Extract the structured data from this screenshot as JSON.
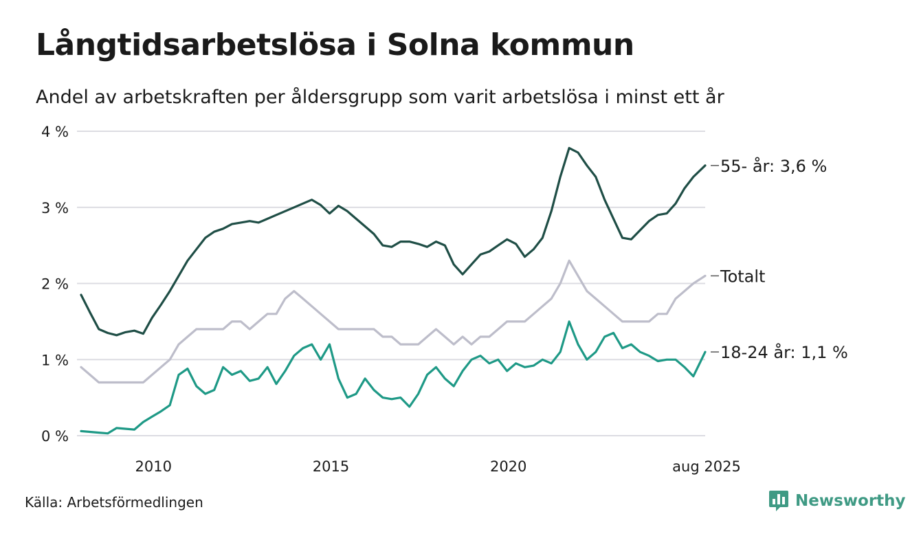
{
  "title": "Långtidsarbetslösa i Solna kommun",
  "subtitle": "Andel av arbetskraften per åldersgrupp som varit arbetslösa i minst ett år",
  "source": "Källa: Arbetsförmedlingen",
  "brand": {
    "name": "Newsworthy",
    "icon": "bar-chart-logo-icon",
    "color": "#3f9a84"
  },
  "chart_data": {
    "type": "line",
    "x_unit": "year",
    "xlim": [
      2008.0,
      2025.583
    ],
    "ylim": [
      0,
      4
    ],
    "y_ticks": [
      0,
      1,
      2,
      3,
      4
    ],
    "y_tick_labels": [
      "0 %",
      "1 %",
      "2 %",
      "3 %",
      "4 %"
    ],
    "x_ticks": [
      2010,
      2015,
      2020,
      2025.583
    ],
    "x_tick_labels": [
      "2010",
      "2015",
      "2020",
      "aug 2025"
    ],
    "grid": true,
    "legend": "end-of-line labels",
    "series": [
      {
        "name": "55- år",
        "end_label": "55- år: 3,6 %",
        "color": "#1f4e46",
        "points": [
          [
            2008.0,
            1.85
          ],
          [
            2008.25,
            1.62
          ],
          [
            2008.5,
            1.4
          ],
          [
            2008.75,
            1.35
          ],
          [
            2009.0,
            1.32
          ],
          [
            2009.25,
            1.36
          ],
          [
            2009.5,
            1.38
          ],
          [
            2009.75,
            1.34
          ],
          [
            2010.0,
            1.55
          ],
          [
            2010.25,
            1.72
          ],
          [
            2010.5,
            1.9
          ],
          [
            2010.75,
            2.1
          ],
          [
            2011.0,
            2.3
          ],
          [
            2011.25,
            2.45
          ],
          [
            2011.5,
            2.6
          ],
          [
            2011.75,
            2.68
          ],
          [
            2012.0,
            2.72
          ],
          [
            2012.25,
            2.78
          ],
          [
            2012.5,
            2.8
          ],
          [
            2012.75,
            2.82
          ],
          [
            2013.0,
            2.8
          ],
          [
            2013.25,
            2.85
          ],
          [
            2013.5,
            2.9
          ],
          [
            2013.75,
            2.95
          ],
          [
            2014.0,
            3.0
          ],
          [
            2014.25,
            3.05
          ],
          [
            2014.5,
            3.1
          ],
          [
            2014.75,
            3.03
          ],
          [
            2015.0,
            2.92
          ],
          [
            2015.25,
            3.02
          ],
          [
            2015.5,
            2.95
          ],
          [
            2015.75,
            2.85
          ],
          [
            2016.0,
            2.75
          ],
          [
            2016.25,
            2.65
          ],
          [
            2016.5,
            2.5
          ],
          [
            2016.75,
            2.48
          ],
          [
            2017.0,
            2.55
          ],
          [
            2017.25,
            2.55
          ],
          [
            2017.5,
            2.52
          ],
          [
            2017.75,
            2.48
          ],
          [
            2018.0,
            2.55
          ],
          [
            2018.25,
            2.5
          ],
          [
            2018.5,
            2.25
          ],
          [
            2018.75,
            2.12
          ],
          [
            2019.0,
            2.25
          ],
          [
            2019.25,
            2.38
          ],
          [
            2019.5,
            2.42
          ],
          [
            2019.75,
            2.5
          ],
          [
            2020.0,
            2.58
          ],
          [
            2020.25,
            2.52
          ],
          [
            2020.5,
            2.35
          ],
          [
            2020.75,
            2.45
          ],
          [
            2021.0,
            2.6
          ],
          [
            2021.25,
            2.95
          ],
          [
            2021.5,
            3.4
          ],
          [
            2021.75,
            3.78
          ],
          [
            2022.0,
            3.72
          ],
          [
            2022.25,
            3.55
          ],
          [
            2022.5,
            3.4
          ],
          [
            2022.75,
            3.1
          ],
          [
            2023.0,
            2.85
          ],
          [
            2023.25,
            2.6
          ],
          [
            2023.5,
            2.58
          ],
          [
            2023.75,
            2.7
          ],
          [
            2024.0,
            2.82
          ],
          [
            2024.25,
            2.9
          ],
          [
            2024.5,
            2.92
          ],
          [
            2024.75,
            3.05
          ],
          [
            2025.0,
            3.25
          ],
          [
            2025.25,
            3.4
          ],
          [
            2025.583,
            3.55
          ]
        ]
      },
      {
        "name": "Totalt",
        "end_label": "Totalt",
        "color": "#bdbdca",
        "points": [
          [
            2008.0,
            0.9
          ],
          [
            2008.25,
            0.8
          ],
          [
            2008.5,
            0.7
          ],
          [
            2008.75,
            0.7
          ],
          [
            2009.0,
            0.7
          ],
          [
            2009.25,
            0.7
          ],
          [
            2009.5,
            0.7
          ],
          [
            2009.75,
            0.7
          ],
          [
            2010.0,
            0.8
          ],
          [
            2010.25,
            0.9
          ],
          [
            2010.5,
            1.0
          ],
          [
            2010.75,
            1.2
          ],
          [
            2011.0,
            1.3
          ],
          [
            2011.25,
            1.4
          ],
          [
            2011.5,
            1.4
          ],
          [
            2011.75,
            1.4
          ],
          [
            2012.0,
            1.4
          ],
          [
            2012.25,
            1.5
          ],
          [
            2012.5,
            1.5
          ],
          [
            2012.75,
            1.4
          ],
          [
            2013.0,
            1.5
          ],
          [
            2013.25,
            1.6
          ],
          [
            2013.5,
            1.6
          ],
          [
            2013.75,
            1.8
          ],
          [
            2014.0,
            1.9
          ],
          [
            2014.25,
            1.8
          ],
          [
            2014.5,
            1.7
          ],
          [
            2014.75,
            1.6
          ],
          [
            2015.0,
            1.5
          ],
          [
            2015.25,
            1.4
          ],
          [
            2015.5,
            1.4
          ],
          [
            2015.75,
            1.4
          ],
          [
            2016.0,
            1.4
          ],
          [
            2016.25,
            1.4
          ],
          [
            2016.5,
            1.3
          ],
          [
            2016.75,
            1.3
          ],
          [
            2017.0,
            1.2
          ],
          [
            2017.25,
            1.2
          ],
          [
            2017.5,
            1.2
          ],
          [
            2017.75,
            1.3
          ],
          [
            2018.0,
            1.4
          ],
          [
            2018.25,
            1.3
          ],
          [
            2018.5,
            1.2
          ],
          [
            2018.75,
            1.3
          ],
          [
            2019.0,
            1.2
          ],
          [
            2019.25,
            1.3
          ],
          [
            2019.5,
            1.3
          ],
          [
            2019.75,
            1.4
          ],
          [
            2020.0,
            1.5
          ],
          [
            2020.25,
            1.5
          ],
          [
            2020.5,
            1.5
          ],
          [
            2020.75,
            1.6
          ],
          [
            2021.0,
            1.7
          ],
          [
            2021.25,
            1.8
          ],
          [
            2021.5,
            2.0
          ],
          [
            2021.75,
            2.3
          ],
          [
            2022.0,
            2.1
          ],
          [
            2022.25,
            1.9
          ],
          [
            2022.5,
            1.8
          ],
          [
            2022.75,
            1.7
          ],
          [
            2023.0,
            1.6
          ],
          [
            2023.25,
            1.5
          ],
          [
            2023.5,
            1.5
          ],
          [
            2023.75,
            1.5
          ],
          [
            2024.0,
            1.5
          ],
          [
            2024.25,
            1.6
          ],
          [
            2024.5,
            1.6
          ],
          [
            2024.75,
            1.8
          ],
          [
            2025.0,
            1.9
          ],
          [
            2025.25,
            2.0
          ],
          [
            2025.583,
            2.1
          ]
        ]
      },
      {
        "name": "18-24 år",
        "end_label": "18-24 år: 1,1 %",
        "color": "#1e9986",
        "points": [
          [
            2008.0,
            0.06
          ],
          [
            2008.25,
            0.05
          ],
          [
            2008.5,
            0.04
          ],
          [
            2008.75,
            0.03
          ],
          [
            2009.0,
            0.1
          ],
          [
            2009.25,
            0.09
          ],
          [
            2009.5,
            0.08
          ],
          [
            2009.75,
            0.18
          ],
          [
            2010.0,
            0.25
          ],
          [
            2010.25,
            0.32
          ],
          [
            2010.5,
            0.4
          ],
          [
            2010.75,
            0.8
          ],
          [
            2011.0,
            0.88
          ],
          [
            2011.25,
            0.65
          ],
          [
            2011.5,
            0.55
          ],
          [
            2011.75,
            0.6
          ],
          [
            2012.0,
            0.9
          ],
          [
            2012.25,
            0.8
          ],
          [
            2012.5,
            0.85
          ],
          [
            2012.75,
            0.72
          ],
          [
            2013.0,
            0.75
          ],
          [
            2013.25,
            0.9
          ],
          [
            2013.5,
            0.68
          ],
          [
            2013.75,
            0.85
          ],
          [
            2014.0,
            1.05
          ],
          [
            2014.25,
            1.15
          ],
          [
            2014.5,
            1.2
          ],
          [
            2014.75,
            1.0
          ],
          [
            2015.0,
            1.2
          ],
          [
            2015.25,
            0.75
          ],
          [
            2015.5,
            0.5
          ],
          [
            2015.75,
            0.55
          ],
          [
            2016.0,
            0.75
          ],
          [
            2016.25,
            0.6
          ],
          [
            2016.5,
            0.5
          ],
          [
            2016.75,
            0.48
          ],
          [
            2017.0,
            0.5
          ],
          [
            2017.25,
            0.38
          ],
          [
            2017.5,
            0.55
          ],
          [
            2017.75,
            0.8
          ],
          [
            2018.0,
            0.9
          ],
          [
            2018.25,
            0.75
          ],
          [
            2018.5,
            0.65
          ],
          [
            2018.75,
            0.85
          ],
          [
            2019.0,
            1.0
          ],
          [
            2019.25,
            1.05
          ],
          [
            2019.5,
            0.95
          ],
          [
            2019.75,
            1.0
          ],
          [
            2020.0,
            0.85
          ],
          [
            2020.25,
            0.95
          ],
          [
            2020.5,
            0.9
          ],
          [
            2020.75,
            0.92
          ],
          [
            2021.0,
            1.0
          ],
          [
            2021.25,
            0.95
          ],
          [
            2021.5,
            1.1
          ],
          [
            2021.75,
            1.5
          ],
          [
            2022.0,
            1.2
          ],
          [
            2022.25,
            1.0
          ],
          [
            2022.5,
            1.1
          ],
          [
            2022.75,
            1.3
          ],
          [
            2023.0,
            1.35
          ],
          [
            2023.25,
            1.15
          ],
          [
            2023.5,
            1.2
          ],
          [
            2023.75,
            1.1
          ],
          [
            2024.0,
            1.05
          ],
          [
            2024.25,
            0.98
          ],
          [
            2024.5,
            1.0
          ],
          [
            2024.75,
            1.0
          ],
          [
            2025.0,
            0.9
          ],
          [
            2025.25,
            0.78
          ],
          [
            2025.583,
            1.1
          ]
        ]
      }
    ]
  }
}
